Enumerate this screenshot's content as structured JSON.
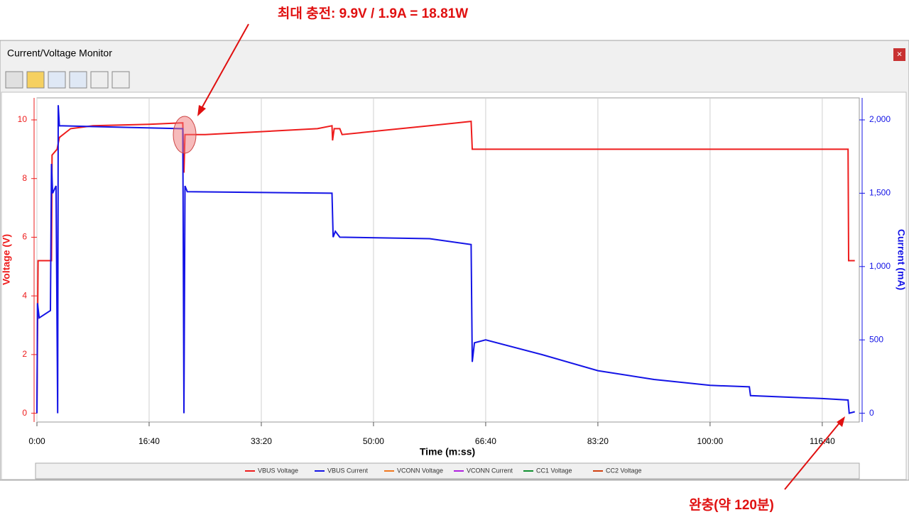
{
  "window": {
    "title": "Current/Voltage Monitor"
  },
  "annotations": {
    "top": "최대 충전: 9.9V / 1.9A = 18.81W",
    "bottom": "완충(약 120분)"
  },
  "chart_data": {
    "type": "line",
    "x_label": "Time (m:ss)",
    "y_label": "Voltage (V)",
    "y2_label": "Current (mA)",
    "xlim": [
      0,
      7330
    ],
    "ylim": [
      -0.3,
      10.75
    ],
    "y2lim": [
      -60,
      2150
    ],
    "grid": true,
    "xticks": [
      {
        "value": 0,
        "label": "0:00"
      },
      {
        "value": 1000,
        "label": "16:40"
      },
      {
        "value": 2000,
        "label": "33:20"
      },
      {
        "value": 3000,
        "label": "50:00"
      },
      {
        "value": 4000,
        "label": "66:40"
      },
      {
        "value": 5000,
        "label": "83:20"
      },
      {
        "value": 6000,
        "label": "100:00"
      },
      {
        "value": 7000,
        "label": "116:40"
      }
    ],
    "yticks": [
      0,
      2,
      4,
      6,
      8,
      10
    ],
    "y2ticks": [
      0,
      500,
      {
        "value": 1000,
        "label": "1,000"
      },
      {
        "value": 1500,
        "label": "1,500"
      },
      {
        "value": 2000,
        "label": "2,000"
      }
    ],
    "series": [
      {
        "name": "VBUS Voltage",
        "color": "#ee1c1c",
        "x": [
          0,
          10,
          130,
          135,
          180,
          200,
          300,
          500,
          1000,
          1300,
          1310,
          1320,
          1500,
          2500,
          2630,
          2635,
          2650,
          2700,
          2720,
          3500,
          3870,
          3880,
          7230,
          7235,
          7290
        ],
        "values": [
          0,
          5.2,
          5.2,
          8.8,
          9.0,
          9.4,
          9.7,
          9.8,
          9.85,
          9.9,
          8.2,
          9.5,
          9.5,
          9.7,
          9.8,
          9.3,
          9.7,
          9.7,
          9.5,
          9.8,
          9.95,
          9.0,
          9.0,
          5.2,
          5.2
        ]
      },
      {
        "name": "VBUS Current",
        "color": "#1414e6",
        "x": [
          0,
          5,
          20,
          120,
          130,
          140,
          170,
          185,
          190,
          200,
          1300,
          1310,
          1320,
          1340,
          2630,
          2640,
          2660,
          2700,
          3500,
          3870,
          3880,
          3900,
          4000,
          4500,
          5000,
          5500,
          6000,
          6350,
          6360,
          7000,
          7230,
          7240,
          7290
        ],
        "values": [
          0,
          750,
          650,
          700,
          1700,
          1500,
          1550,
          0,
          2100,
          1960,
          1940,
          0,
          1550,
          1510,
          1500,
          1200,
          1240,
          1200,
          1190,
          1150,
          350,
          480,
          500,
          400,
          290,
          230,
          190,
          180,
          120,
          100,
          90,
          0,
          10
        ]
      },
      {
        "name": "VCONN Voltage",
        "color": "#f07820",
        "x": [],
        "values": []
      },
      {
        "name": "VCONN Current",
        "color": "#b020e0",
        "x": [],
        "values": []
      },
      {
        "name": "CC1 Voltage",
        "color": "#109030",
        "x": [],
        "values": []
      },
      {
        "name": "CC2 Voltage",
        "color": "#d04010",
        "x": [],
        "values": []
      }
    ],
    "series_axes": [
      "y",
      "y2"
    ]
  }
}
